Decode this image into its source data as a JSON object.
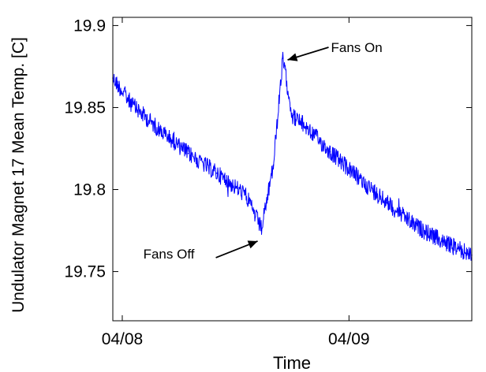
{
  "chart_data": {
    "type": "line",
    "title": "",
    "xlabel": "Time",
    "ylabel": "Undulator Magnet 17 Mean Temp. [C]",
    "ylim": [
      19.72,
      19.905
    ],
    "xlim": [
      "2008-04-07T23:00",
      "2008-04-09T13:00"
    ],
    "x_ticks": [
      {
        "label": "04/08",
        "value": "2008-04-08T00:00"
      },
      {
        "label": "04/09",
        "value": "2008-04-09T00:00"
      }
    ],
    "y_ticks": [
      {
        "label": "19.75",
        "value": 19.75
      },
      {
        "label": "19.8",
        "value": 19.8
      },
      {
        "label": "19.85",
        "value": 19.85
      },
      {
        "label": "19.9",
        "value": 19.9
      }
    ],
    "grid": false,
    "legend": "none",
    "series": [
      {
        "color": "#0000ff",
        "x": [
          "2008-04-07T23:00",
          "2008-04-08T01:00",
          "2008-04-08T04:00",
          "2008-04-08T07:00",
          "2008-04-08T10:00",
          "2008-04-08T13:00",
          "2008-04-08T14:45",
          "2008-04-08T16:00",
          "2008-04-08T17:00",
          "2008-04-08T18:00",
          "2008-04-08T19:30",
          "2008-04-08T22:00",
          "2008-04-09T01:00",
          "2008-04-09T04:00",
          "2008-04-09T07:00",
          "2008-04-09T10:00",
          "2008-04-09T13:00"
        ],
        "values": [
          19.868,
          19.852,
          19.836,
          19.822,
          19.81,
          19.797,
          19.776,
          19.815,
          19.88,
          19.845,
          19.838,
          19.823,
          19.807,
          19.792,
          19.778,
          19.768,
          19.76
        ]
      }
    ],
    "annotations": [
      {
        "text": "Fans On",
        "x": "2008-04-08T17:00",
        "y": 19.88
      },
      {
        "text": "Fans Off",
        "x": "2008-04-08T14:45",
        "y": 19.77
      }
    ]
  }
}
